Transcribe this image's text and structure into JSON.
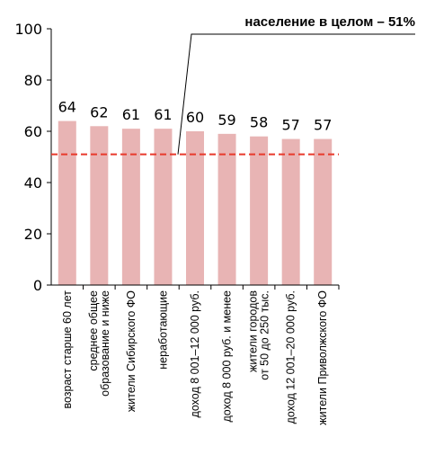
{
  "chart_data": {
    "type": "bar",
    "title": "",
    "xlabel": "",
    "ylabel": "",
    "ylim": [
      0,
      100
    ],
    "yticks": [
      0,
      20,
      40,
      60,
      80,
      100
    ],
    "categories": [
      [
        "возраст старше 60 лет"
      ],
      [
        "среднее общее",
        "образование и ниже"
      ],
      [
        "жители Сибирского ФО"
      ],
      [
        "неработающие"
      ],
      [
        "доход 8 001–12 000 руб."
      ],
      [
        "доход 8 000 руб. и менее"
      ],
      [
        "жители городов",
        "от 50 до 250 тыс."
      ],
      [
        "доход 12 001–20 000 руб."
      ],
      [
        "жители Приволжского ФО"
      ]
    ],
    "values": [
      64,
      62,
      61,
      61,
      60,
      59,
      58,
      57,
      57
    ],
    "bar_color": "#e8b4b4",
    "reference_line": {
      "value": 51,
      "label": "население в целом – 51%",
      "color": "#e8392b"
    }
  }
}
